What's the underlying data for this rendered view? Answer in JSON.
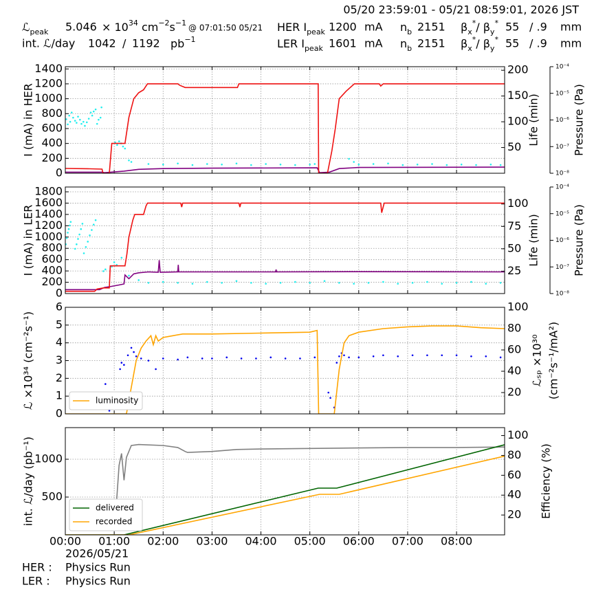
{
  "header": {
    "period": "05/20 23:59:01 - 05/21 08:59:01, 2026 JST",
    "lum_peak_label": [
      "ℒ",
      "peak"
    ],
    "lum_peak": "5.046",
    "lum_unit": [
      "× 10",
      "34",
      " cm",
      "−2",
      "s",
      "−1"
    ],
    "lum_peak_time": "@ 07:01:50 05/21",
    "int_lum_label": "int. ℒ/day",
    "int_lum_recorded": "1042",
    "int_lum_sep": "/",
    "int_lum_delivered": "1192",
    "int_lum_unit": [
      "pb",
      "−1"
    ],
    "rings": [
      {
        "label": [
          "HER I",
          "peak"
        ],
        "current": "1200",
        "current_unit": "mA",
        "nb_label": [
          "n",
          "b"
        ],
        "nb": "2151",
        "beta_label": [
          "β",
          "x",
          "*",
          "/ β",
          "y",
          "*"
        ],
        "beta_x": "55",
        "beta_y": "/ .9",
        "beta_unit": "mm"
      },
      {
        "label": [
          "LER I",
          "peak"
        ],
        "current": "1601",
        "current_unit": "mA",
        "nb_label": [
          "n",
          "b"
        ],
        "nb": "2151",
        "beta_label": [
          "β",
          "x",
          "*",
          "/ β",
          "y",
          "*"
        ],
        "beta_x": "55",
        "beta_y": "/ .9",
        "beta_unit": "mm"
      }
    ]
  },
  "footer": {
    "date": "2026/05/21",
    "status": [
      {
        "ring": "HER :",
        "state": "Physics Run"
      },
      {
        "ring": "LER :",
        "state": "Physics Run"
      }
    ]
  },
  "chart_data": [
    {
      "type": "line",
      "ylabel": "I (mA) in HER",
      "y2label": "Life (min)",
      "y3label": "Pressure (Pa)",
      "grid": true,
      "xlim": [
        0,
        8.983
      ],
      "xticks": [
        0,
        1,
        2,
        3,
        4,
        5,
        6,
        7,
        8
      ],
      "ylim": [
        0,
        1430
      ],
      "yticks": [
        0,
        200,
        400,
        600,
        800,
        1000,
        1200,
        1400
      ],
      "y2lim": [
        0,
        207
      ],
      "y2ticks": [
        50,
        100,
        150,
        200
      ],
      "y3lim": [
        1e-08,
        0.0001
      ],
      "y3log": true,
      "y3ticks": [
        {
          "value": 1e-08,
          "label": "10⁻⁸"
        },
        {
          "value": 1e-07,
          "label": "10⁻⁷"
        },
        {
          "value": 1e-06,
          "label": "10⁻⁶"
        },
        {
          "value": 1e-05,
          "label": "10⁻⁵"
        },
        {
          "value": 0.0001,
          "label": "10⁻⁴"
        }
      ],
      "series": [
        {
          "type": "scatter",
          "color": "#22eeee",
          "axis": "y2",
          "x": [
            0.02,
            0.05,
            0.08,
            0.1,
            0.13,
            0.16,
            0.2,
            0.23,
            0.26,
            0.3,
            0.33,
            0.37,
            0.4,
            0.44,
            0.48,
            0.52,
            0.55,
            0.58,
            0.62,
            0.65,
            0.68,
            0.72,
            0.74,
            1.02,
            1.06,
            1.1,
            1.14,
            1.18,
            1.22,
            1.3,
            1.35,
            1.7,
            2.0,
            2.3,
            2.6,
            2.9,
            3.2,
            3.5,
            3.8,
            4.1,
            4.4,
            4.7,
            5.0,
            5.1,
            5.8,
            5.9,
            6.0,
            6.3,
            6.6,
            6.9,
            7.2,
            7.5,
            7.8,
            8.1,
            8.4,
            8.7,
            8.9
          ],
          "values": [
            105,
            95,
            112,
            100,
            118,
            108,
            102,
            98,
            110,
            104,
            96,
            100,
            92,
            99,
            106,
            118,
            112,
            120,
            124,
            96,
            104,
            108,
            128,
            60,
            55,
            62,
            58,
            52,
            48,
            25,
            22,
            18,
            17,
            19,
            16,
            18,
            17,
            19,
            16,
            18,
            17,
            16,
            17,
            18,
            28,
            22,
            17,
            18,
            19,
            16,
            17,
            18,
            16,
            17,
            16,
            17,
            16
          ]
        },
        {
          "type": "line",
          "color": "#800080",
          "axis": "y3",
          "x": [
            0,
            0.75,
            0.8,
            1.2,
            1.5,
            2.0,
            3.0,
            5.15,
            5.2,
            5.4,
            5.6,
            6.0,
            8.983
          ],
          "values": [
            1.1e-08,
            1.1e-08,
            1.05e-08,
            1.2e-08,
            1.4e-08,
            1.5e-08,
            1.55e-08,
            1.6e-08,
            1.05e-08,
            1.1e-08,
            1.5e-08,
            1.65e-08,
            1.7e-08
          ]
        },
        {
          "type": "line",
          "color": "#ee1111",
          "axis": "y",
          "x": [
            0,
            0.5,
            0.75,
            0.77,
            0.9,
            0.95,
            1.22,
            1.3,
            1.4,
            1.5,
            1.6,
            1.68,
            2.3,
            2.34,
            2.45,
            3.52,
            3.55,
            5.17,
            5.18,
            5.36,
            5.45,
            5.52,
            5.6,
            5.74,
            5.91,
            6.42,
            6.45,
            6.5,
            8.983
          ],
          "values": [
            65,
            60,
            55,
            0,
            0,
            400,
            400,
            750,
            1000,
            1080,
            1120,
            1200,
            1200,
            1180,
            1150,
            1150,
            1200,
            1200,
            0,
            0,
            300,
            600,
            1000,
            1100,
            1200,
            1200,
            1170,
            1200,
            1200
          ]
        }
      ]
    },
    {
      "type": "line",
      "ylabel": "I (mA) in LER",
      "y2label": "Life (min)",
      "y3label": "Pressure (Pa)",
      "grid": true,
      "xlim": [
        0,
        8.983
      ],
      "xticks": [
        0,
        1,
        2,
        3,
        4,
        5,
        6,
        7,
        8
      ],
      "ylim": [
        0,
        1885
      ],
      "yticks": [
        0,
        200,
        400,
        600,
        800,
        1000,
        1200,
        1400,
        1600,
        1800
      ],
      "y2lim": [
        0,
        119
      ],
      "y2ticks": [
        25,
        50,
        75,
        100
      ],
      "y3lim": [
        1e-08,
        0.0001
      ],
      "y3log": true,
      "y3ticks": [
        {
          "value": 1e-08,
          "label": "10⁻⁸"
        },
        {
          "value": 1e-07,
          "label": "10⁻⁷"
        },
        {
          "value": 1e-06,
          "label": "10⁻⁶"
        },
        {
          "value": 1e-05,
          "label": "10⁻⁵"
        },
        {
          "value": 0.0001,
          "label": "10⁻⁴"
        }
      ],
      "series": [
        {
          "type": "scatter",
          "color": "#22eeee",
          "axis": "y2",
          "x": [
            0.01,
            0.03,
            0.05,
            0.07,
            0.09,
            0.11,
            0.2,
            0.23,
            0.26,
            0.29,
            0.32,
            0.35,
            0.38,
            0.42,
            0.46,
            0.5,
            0.54,
            0.58,
            0.62,
            0.78,
            0.82,
            0.95,
            1.0,
            1.05,
            1.15,
            1.3,
            1.5,
            1.7,
            2.0,
            2.3,
            2.6,
            2.9,
            3.2,
            3.5,
            3.8,
            4.1,
            4.4,
            4.7,
            5.0,
            5.3,
            5.6,
            5.9,
            6.2,
            6.5,
            6.8,
            7.1,
            7.4,
            7.7,
            8.0,
            8.3,
            8.6,
            8.9
          ],
          "values": [
            55,
            62,
            68,
            72,
            76,
            80,
            50,
            55,
            61,
            66,
            72,
            78,
            45,
            52,
            58,
            65,
            71,
            77,
            82,
            25,
            27,
            30,
            35,
            32,
            40,
            20,
            15,
            12,
            13,
            12,
            11,
            13,
            12,
            14,
            12,
            11,
            12,
            13,
            12,
            14,
            12,
            11,
            12,
            13,
            11,
            12,
            13,
            11,
            12,
            13,
            11,
            12
          ]
        },
        {
          "type": "line",
          "color": "#800080",
          "axis": "y3",
          "x": [
            0,
            0.7,
            0.8,
            0.9,
            1.1,
            1.2,
            1.22,
            1.3,
            1.4,
            1.5,
            1.7,
            1.9,
            1.92,
            1.94,
            2.3,
            2.31,
            2.32,
            3.0,
            4.3,
            4.31,
            4.32,
            6.0,
            8.983
          ],
          "values": [
            1.4e-08,
            1.4e-08,
            1.7e-08,
            1.8e-08,
            2.1e-08,
            2.3e-08,
            5e-08,
            3.6e-08,
            5.5e-08,
            6e-08,
            6.5e-08,
            6.3e-08,
            1.8e-07,
            6.3e-08,
            6.5e-08,
            1.2e-07,
            6.5e-08,
            6.5e-08,
            6.5e-08,
            8e-08,
            6.5e-08,
            6.6e-08,
            6.5e-08
          ]
        },
        {
          "type": "line",
          "color": "#ee1111",
          "axis": "y",
          "x": [
            0,
            0.6,
            0.65,
            0.78,
            0.9,
            0.92,
            1.22,
            1.26,
            1.3,
            1.38,
            1.42,
            1.6,
            1.65,
            1.68,
            2.36,
            2.38,
            2.4,
            3.55,
            3.57,
            3.59,
            6.45,
            6.47,
            6.52,
            8.983
          ],
          "values": [
            40,
            40,
            80,
            100,
            100,
            490,
            490,
            700,
            1000,
            1300,
            1400,
            1400,
            1550,
            1600,
            1600,
            1530,
            1600,
            1600,
            1530,
            1600,
            1600,
            1430,
            1600,
            1600
          ]
        }
      ]
    },
    {
      "type": "line",
      "ylabel": "ℒ ×10³⁴ (cm⁻²s⁻¹)",
      "y2label": [
        "ℒₛₚ ×10³⁰",
        "(cm⁻²s⁻¹/mA²)"
      ],
      "grid": true,
      "legend": "lower left",
      "xlim": [
        0,
        8.983
      ],
      "xticks": [
        0,
        1,
        2,
        3,
        4,
        5,
        6,
        7,
        8
      ],
      "ylim": [
        0,
        6
      ],
      "yticks": [
        0,
        1,
        2,
        3,
        4,
        5,
        6
      ],
      "y2lim": [
        0,
        100
      ],
      "y2ticks": [
        20,
        40,
        60,
        80,
        100
      ],
      "series": [
        {
          "type": "scatter",
          "color": "#0000ee",
          "axis": "y2",
          "x": [
            0.82,
            0.87,
            0.9,
            0.95,
            1.0,
            1.05,
            1.12,
            1.15,
            1.2,
            1.28,
            1.35,
            1.4,
            1.45,
            1.55,
            1.7,
            1.85,
            2.0,
            2.3,
            2.5,
            2.8,
            3.0,
            3.3,
            3.6,
            3.9,
            4.2,
            4.5,
            4.8,
            5.1,
            5.38,
            5.42,
            5.5,
            5.55,
            5.6,
            5.65,
            5.7,
            5.8,
            6.0,
            6.3,
            6.5,
            6.8,
            7.1,
            7.4,
            7.7,
            8.0,
            8.3,
            8.6,
            8.9
          ],
          "values": [
            28,
            5,
            3,
            8,
            6,
            20,
            42,
            48,
            46,
            55,
            62,
            58,
            54,
            52,
            50,
            42,
            52,
            51,
            53,
            52,
            52,
            53,
            52,
            52,
            53,
            52,
            52,
            53,
            20,
            15,
            6,
            48,
            54,
            57,
            55,
            53,
            53,
            54,
            55,
            54,
            55,
            55,
            55,
            55,
            54,
            54,
            53
          ]
        },
        {
          "type": "line",
          "name": "luminosity",
          "color": "#ffa500",
          "axis": "y",
          "x": [
            0,
            1.25,
            1.35,
            1.45,
            1.55,
            1.65,
            1.75,
            1.8,
            1.85,
            1.9,
            2.0,
            2.2,
            2.4,
            3.0,
            4.0,
            5.0,
            5.15,
            5.18,
            5.5,
            5.6,
            5.7,
            5.8,
            6.0,
            6.5,
            7.0,
            7.5,
            8.0,
            8.5,
            8.983
          ],
          "values": [
            0,
            0,
            1.5,
            3.0,
            3.7,
            4.1,
            4.4,
            3.9,
            4.4,
            4.1,
            4.3,
            4.4,
            4.5,
            4.5,
            4.55,
            4.6,
            4.7,
            0,
            0,
            2.5,
            4.0,
            4.4,
            4.6,
            4.8,
            4.9,
            4.95,
            4.95,
            4.85,
            4.8
          ]
        }
      ]
    },
    {
      "type": "line",
      "ylabel": "int. ℒ/day (pb⁻¹)",
      "y2label": "Efficiency (%)",
      "grid": true,
      "legend": "lower left",
      "xlim": [
        0,
        8.983
      ],
      "xticks": [
        {
          "value": 0,
          "label": "00:00"
        },
        {
          "value": 1,
          "label": "01:00"
        },
        {
          "value": 2,
          "label": "02:00"
        },
        {
          "value": 3,
          "label": "03:00"
        },
        {
          "value": 4,
          "label": "04:00"
        },
        {
          "value": 5,
          "label": "05:00"
        },
        {
          "value": 6,
          "label": "06:00"
        },
        {
          "value": 7,
          "label": "07:00"
        },
        {
          "value": 8,
          "label": "08:00"
        }
      ],
      "ylim": [
        0,
        1418
      ],
      "yticks": [
        500,
        1000
      ],
      "y2lim": [
        0,
        108
      ],
      "y2ticks": [
        20,
        40,
        60,
        80,
        100
      ],
      "series": [
        {
          "type": "line",
          "color": "#808080",
          "axis": "y2",
          "x": [
            1.05,
            1.1,
            1.15,
            1.2,
            1.25,
            1.35,
            1.5,
            2.0,
            2.3,
            2.45,
            2.5,
            3.0,
            3.5,
            4.0,
            5.0,
            6.0,
            7.0,
            8.0,
            8.983
          ],
          "values": [
            35,
            70,
            82,
            55,
            78,
            90,
            91,
            90,
            88,
            84,
            83,
            84,
            86,
            86.5,
            87,
            87.5,
            88,
            88,
            88.5
          ]
        },
        {
          "type": "line",
          "name": "delivered",
          "color": "#006400",
          "axis": "y",
          "x": [
            0,
            1.2,
            5.17,
            5.55,
            8.983
          ],
          "values": [
            0,
            0,
            618,
            618,
            1192
          ]
        },
        {
          "type": "line",
          "name": "recorded",
          "color": "#ffa500",
          "axis": "y",
          "x": [
            0,
            1.3,
            5.2,
            5.6,
            8.983
          ],
          "values": [
            0,
            0,
            536,
            536,
            1042
          ]
        }
      ]
    }
  ]
}
